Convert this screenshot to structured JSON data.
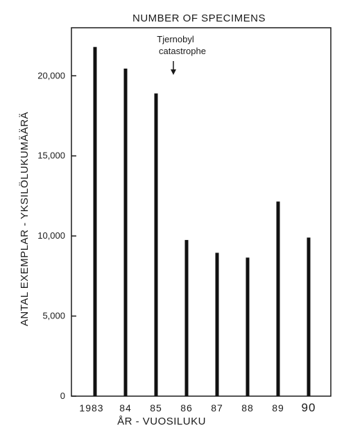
{
  "chart_data": {
    "type": "bar",
    "title": "NUMBER OF SPECIMENS",
    "xlabel": "ÅR - VUOSILUKU",
    "ylabel": "ANTAL EXEMPLAR - YKSILÖLUKUMÄÄRÄ",
    "categories": [
      "1983",
      "84",
      "85",
      "86",
      "87",
      "88",
      "89",
      "90"
    ],
    "values": [
      21800,
      20450,
      18900,
      9750,
      8950,
      8650,
      12150,
      9900
    ],
    "ylim": [
      0,
      23000
    ],
    "yticks": [
      0,
      5000,
      10000,
      15000,
      20000
    ],
    "ytick_labels": [
      "0",
      "5,000",
      "10,000",
      "15,000",
      "20,000"
    ],
    "annotation": {
      "lines": [
        "Tjernobyl",
        "catastrophe"
      ],
      "arrow_at_year": 1985.5
    },
    "grid": false,
    "legend": "none",
    "bar_color": "#111111"
  }
}
